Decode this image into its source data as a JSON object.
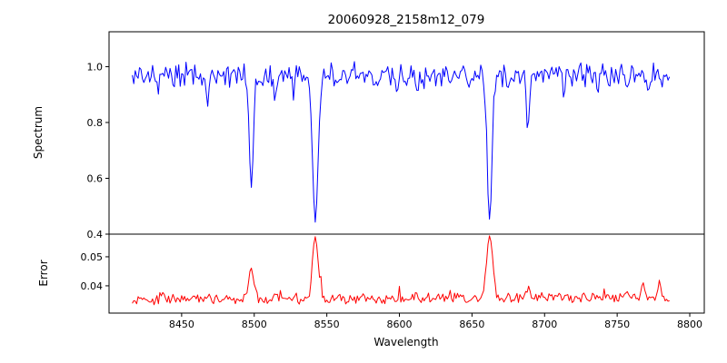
{
  "figure": {
    "background": "#ffffff"
  },
  "chart_data": {
    "type": "line",
    "title": "20060928_2158m12_079",
    "xlabel": "Wavelength",
    "xlim": [
      8400,
      8810
    ],
    "x_tick_values": [
      8450,
      8500,
      8550,
      8600,
      8650,
      8700,
      8750,
      8800
    ],
    "x_tick_labels": [
      "8450",
      "8500",
      "8550",
      "8600",
      "8650",
      "8700",
      "8750",
      "8800"
    ],
    "x_start": 8416,
    "x_end": 8786,
    "x_step": 1.0,
    "legend": "none",
    "grid": false,
    "panels": [
      {
        "name": "spectrum",
        "ylabel": "Spectrum",
        "color": "#0000ff",
        "ylim": [
          0.4,
          1.125
        ],
        "y_tick_values": [
          0.4,
          0.6,
          0.8,
          1.0
        ],
        "y_tick_labels": [
          "0.4",
          "0.6",
          "0.8",
          "1.0"
        ],
        "continuum": 0.97,
        "noise_amplitude": 0.05,
        "absorption_lines": [
          {
            "center": 8424.0,
            "depth": 0.05,
            "sigma": 0.8
          },
          {
            "center": 8434.0,
            "depth": 0.07,
            "sigma": 0.9
          },
          {
            "center": 8468.5,
            "depth": 0.1,
            "sigma": 1.0
          },
          {
            "center": 8498.0,
            "depth": 0.4,
            "sigma": 1.4
          },
          {
            "center": 8514.1,
            "depth": 0.09,
            "sigma": 0.9
          },
          {
            "center": 8527.0,
            "depth": 0.06,
            "sigma": 0.8
          },
          {
            "center": 8542.1,
            "depth": 0.53,
            "sigma": 1.9
          },
          {
            "center": 8582.3,
            "depth": 0.06,
            "sigma": 0.8
          },
          {
            "center": 8598.8,
            "depth": 0.05,
            "sigma": 0.8
          },
          {
            "center": 8611.8,
            "depth": 0.07,
            "sigma": 0.9
          },
          {
            "center": 8648.5,
            "depth": 0.06,
            "sigma": 0.8
          },
          {
            "center": 8662.1,
            "depth": 0.5,
            "sigma": 1.7
          },
          {
            "center": 8674.8,
            "depth": 0.07,
            "sigma": 0.9
          },
          {
            "center": 8688.6,
            "depth": 0.17,
            "sigma": 1.2
          },
          {
            "center": 8713.2,
            "depth": 0.05,
            "sigma": 0.8
          },
          {
            "center": 8736.0,
            "depth": 0.05,
            "sigma": 0.8
          },
          {
            "center": 8757.0,
            "depth": 0.06,
            "sigma": 0.8
          },
          {
            "center": 8772.0,
            "depth": 0.05,
            "sigma": 0.8
          }
        ]
      },
      {
        "name": "error",
        "ylabel": "Error",
        "color": "#ff0000",
        "ylim": [
          0.0306,
          0.0578
        ],
        "y_tick_values": [
          0.04,
          0.05
        ],
        "y_tick_labels": [
          "0.04",
          "0.05"
        ],
        "baseline": 0.035,
        "baseline_slope": 0.0012,
        "noise_amplitude": 0.002,
        "peaks": [
          {
            "center": 8436.0,
            "height": 0.0025,
            "sigma": 1.2
          },
          {
            "center": 8468.5,
            "height": 0.002,
            "sigma": 1.0
          },
          {
            "center": 8498.0,
            "height": 0.0105,
            "sigma": 1.8
          },
          {
            "center": 8514.1,
            "height": 0.0018,
            "sigma": 1.0
          },
          {
            "center": 8542.1,
            "height": 0.0215,
            "sigma": 2.0
          },
          {
            "center": 8611.8,
            "height": 0.0015,
            "sigma": 1.0
          },
          {
            "center": 8662.1,
            "height": 0.0215,
            "sigma": 2.0
          },
          {
            "center": 8688.6,
            "height": 0.004,
            "sigma": 1.3
          },
          {
            "center": 8757.0,
            "height": 0.0022,
            "sigma": 1.0
          },
          {
            "center": 8768.0,
            "height": 0.0055,
            "sigma": 1.0
          },
          {
            "center": 8779.0,
            "height": 0.0045,
            "sigma": 0.9
          }
        ]
      }
    ]
  }
}
